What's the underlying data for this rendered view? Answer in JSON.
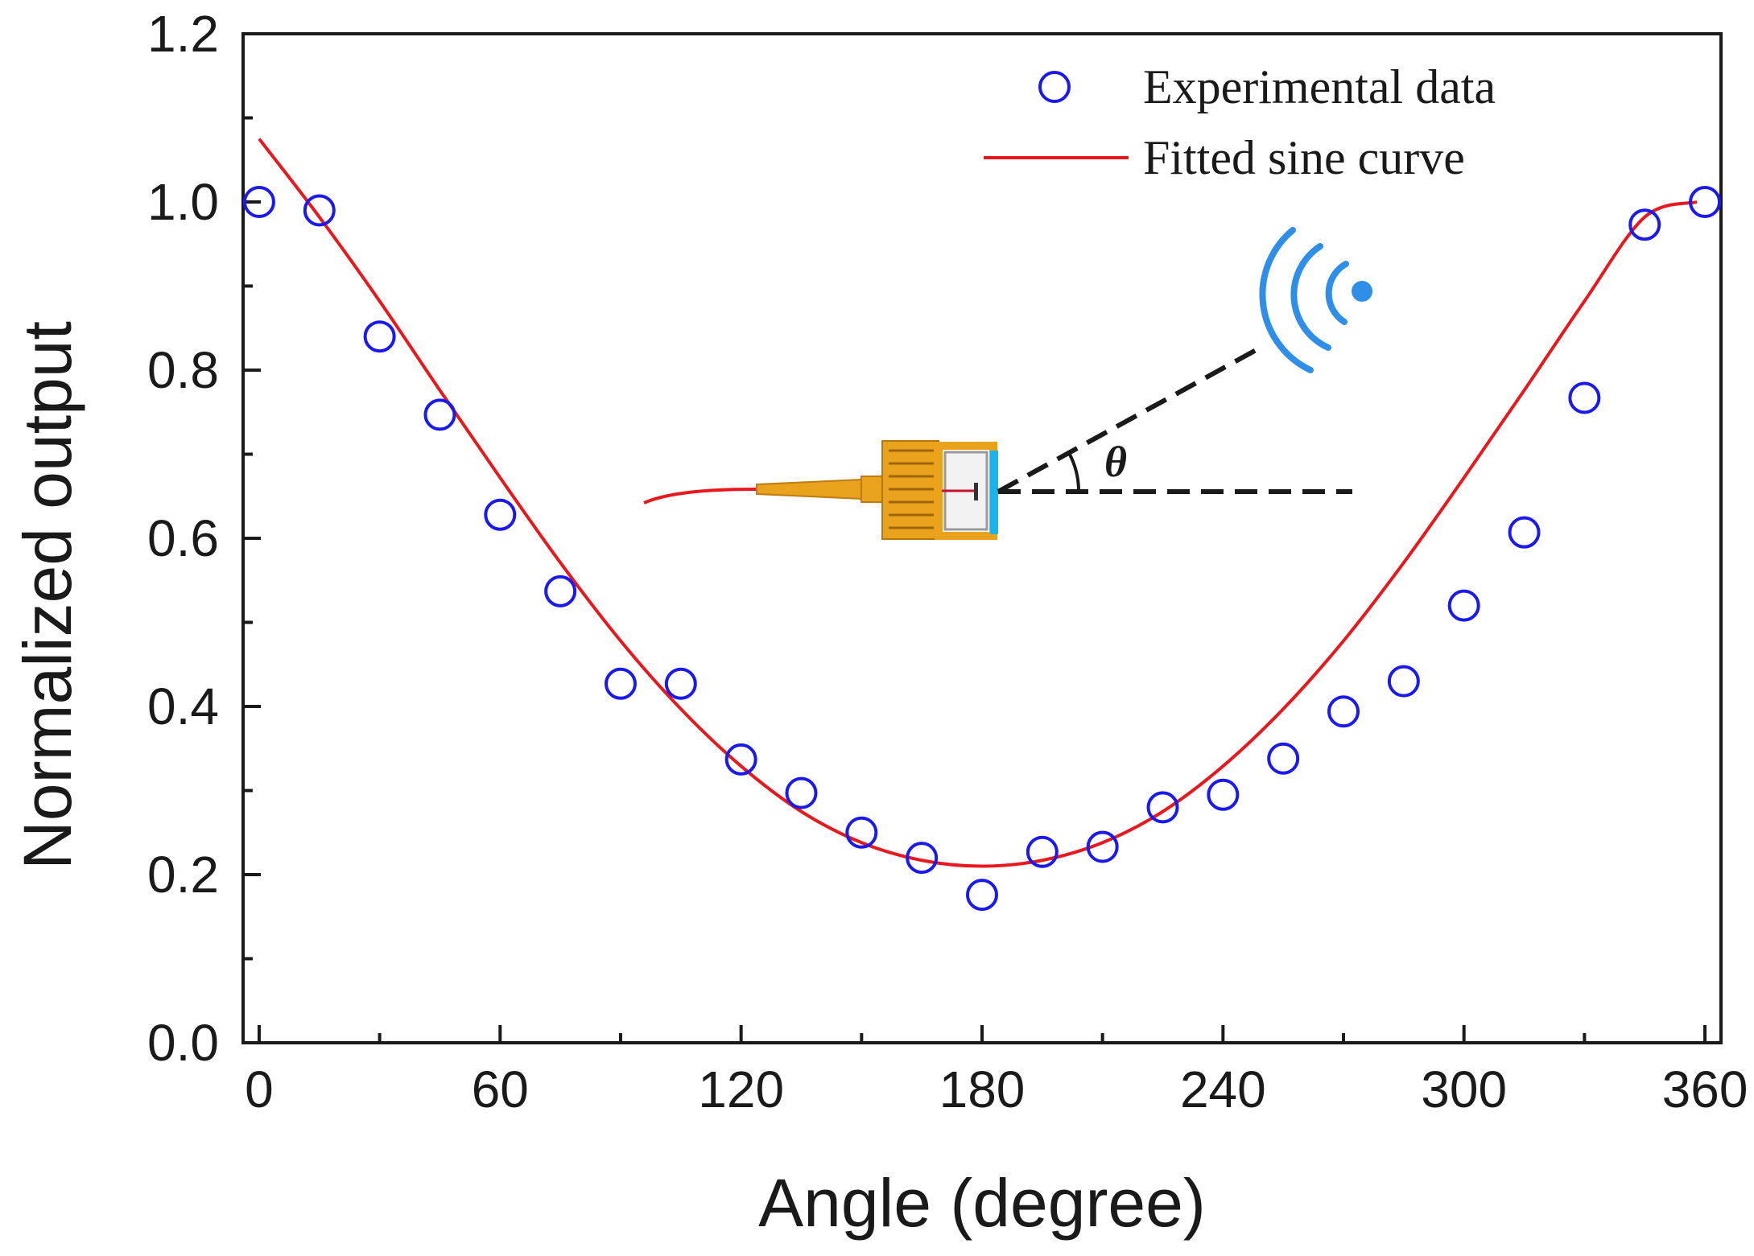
{
  "chart_data": {
    "type": "scatter",
    "title": "",
    "xlabel": "Angle (degree)",
    "ylabel": "Normalized output",
    "xlim": [
      -4,
      364
    ],
    "ylim": [
      0.0,
      1.2
    ],
    "xticks": [
      0,
      60,
      120,
      180,
      240,
      300,
      360
    ],
    "xtick_labels": [
      "0",
      "60",
      "120",
      "180",
      "240",
      "300",
      "360"
    ],
    "yticks": [
      0.0,
      0.2,
      0.4,
      0.6,
      0.8,
      1.0,
      1.2
    ],
    "ytick_labels": [
      "0.0",
      "0.2",
      "0.4",
      "0.6",
      "0.8",
      "1.0",
      "1.2"
    ],
    "grid": false,
    "legend_position": "top-right",
    "series": [
      {
        "name": "Experimental data",
        "kind": "markers",
        "marker": "open-circle",
        "color": "#1a1aee",
        "x": [
          0,
          15,
          30,
          45,
          60,
          75,
          90,
          105,
          120,
          135,
          150,
          165,
          180,
          195,
          210,
          225,
          240,
          255,
          270,
          285,
          300,
          315,
          330,
          345,
          360
        ],
        "y": [
          1.0,
          0.99,
          0.84,
          0.747,
          0.628,
          0.537,
          0.427,
          0.427,
          0.337,
          0.297,
          0.25,
          0.22,
          0.176,
          0.227,
          0.233,
          0.28,
          0.295,
          0.338,
          0.394,
          0.43,
          0.52,
          0.607,
          0.767,
          0.973,
          1.0
        ]
      },
      {
        "name": "Fitted sine curve",
        "kind": "line",
        "color": "#e8191e",
        "x": [
          0,
          15,
          30,
          45,
          60,
          75,
          90,
          105,
          120,
          135,
          150,
          165,
          180,
          195,
          210,
          225,
          240,
          255,
          270,
          285,
          300,
          315,
          330,
          345,
          358
        ],
        "y": [
          1.075,
          0.982,
          0.882,
          0.776,
          0.672,
          0.571,
          0.478,
          0.397,
          0.329,
          0.275,
          0.238,
          0.217,
          0.21,
          0.217,
          0.238,
          0.275,
          0.329,
          0.397,
          0.478,
          0.571,
          0.672,
          0.776,
          0.882,
          0.982,
          1.0
        ]
      }
    ],
    "annotations": [
      {
        "text": "θ",
        "kind": "angle-label"
      }
    ]
  },
  "colors": {
    "marker": "#1a1aee",
    "fit_line": "#e8191e",
    "axes": "#1a1a1a",
    "sensor_gold": "#e8a21c",
    "sensor_window": "#19b5e8",
    "source_wave": "#2f8fe8"
  },
  "icons": {
    "inset_sensor": "fiber-sensor-icon",
    "inset_source": "acoustic-source-icon"
  }
}
